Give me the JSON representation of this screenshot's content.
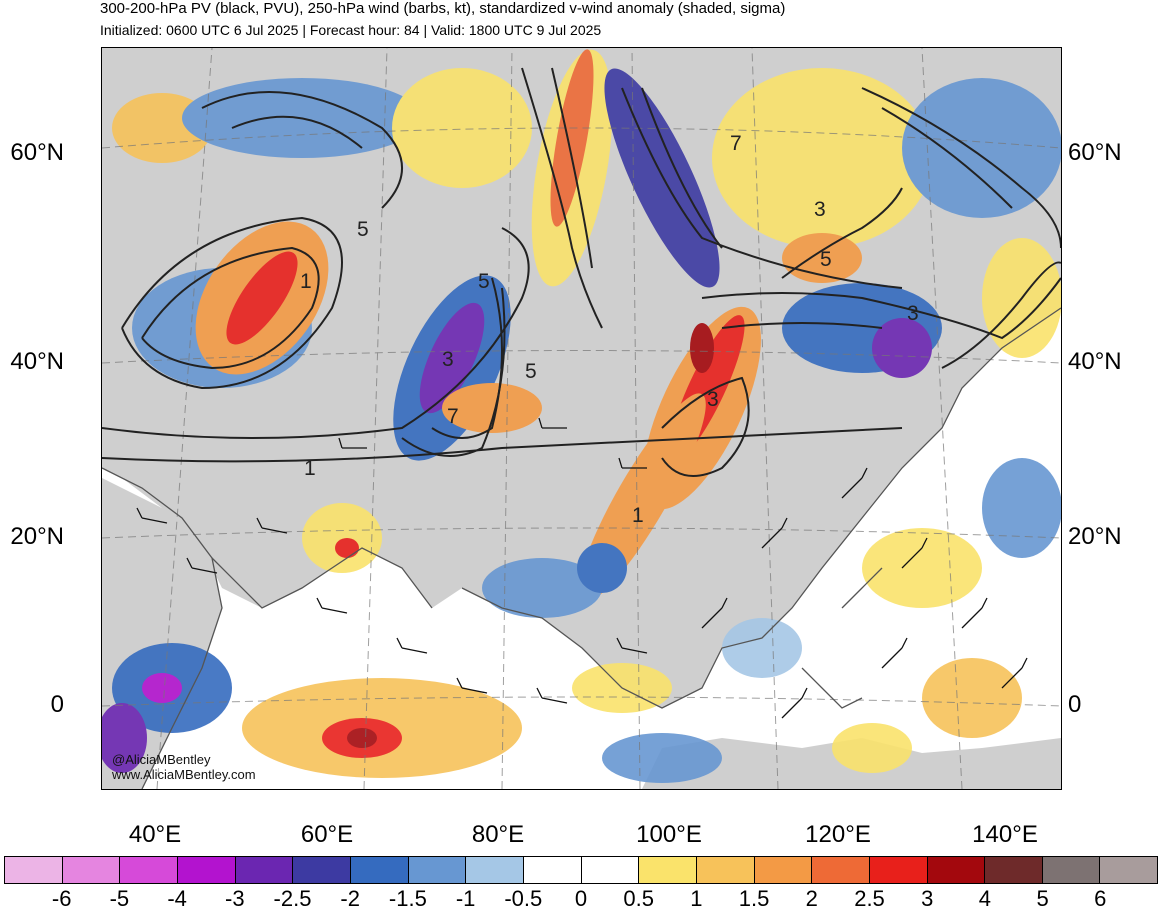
{
  "title_line1": "300-200-hPa PV (black, PVU), 250-hPa wind (barbs, kt), standardized v-wind anomaly (shaded, sigma)",
  "title_line2": "Initialized: 0600 UTC 6 Jul 2025 | Forecast hour: 84 | Valid: 1800 UTC 9 Jul 2025",
  "lat_labels": [
    "60°N",
    "40°N",
    "20°N",
    "0"
  ],
  "lon_labels": [
    "40°E",
    "60°E",
    "80°E",
    "100°E",
    "120°E",
    "140°E"
  ],
  "credit": {
    "handle": "@AliciaMBentley",
    "site": "www.AliciaMBentley.com"
  },
  "contour_labels": [
    "1",
    "3",
    "5",
    "7"
  ],
  "colorbar": {
    "labels": [
      "-6",
      "-5",
      "-4",
      "-3",
      "-2.5",
      "-2",
      "-1.5",
      "-1",
      "-0.5",
      "0",
      "0.5",
      "1",
      "1.5",
      "2",
      "2.5",
      "3",
      "4",
      "5",
      "6"
    ],
    "colors": [
      "#ecb4e6",
      "#e585e0",
      "#d64ad9",
      "#b313cf",
      "#6b26b1",
      "#3d3aa2",
      "#356bbf",
      "#6797d2",
      "#a5c7e6",
      "#ffffff",
      "#ffffff",
      "#fae36b",
      "#f7c25a",
      "#f39a45",
      "#ee6a36",
      "#e8201b",
      "#a3080d",
      "#6e2a2a",
      "#7d7272",
      "#a89c9c"
    ]
  },
  "shading": {
    "land_neutral": "#cfcfcf",
    "ocean_neutral": "#ffffff",
    "coast_color": "#555555",
    "contour_color": "#222222"
  }
}
